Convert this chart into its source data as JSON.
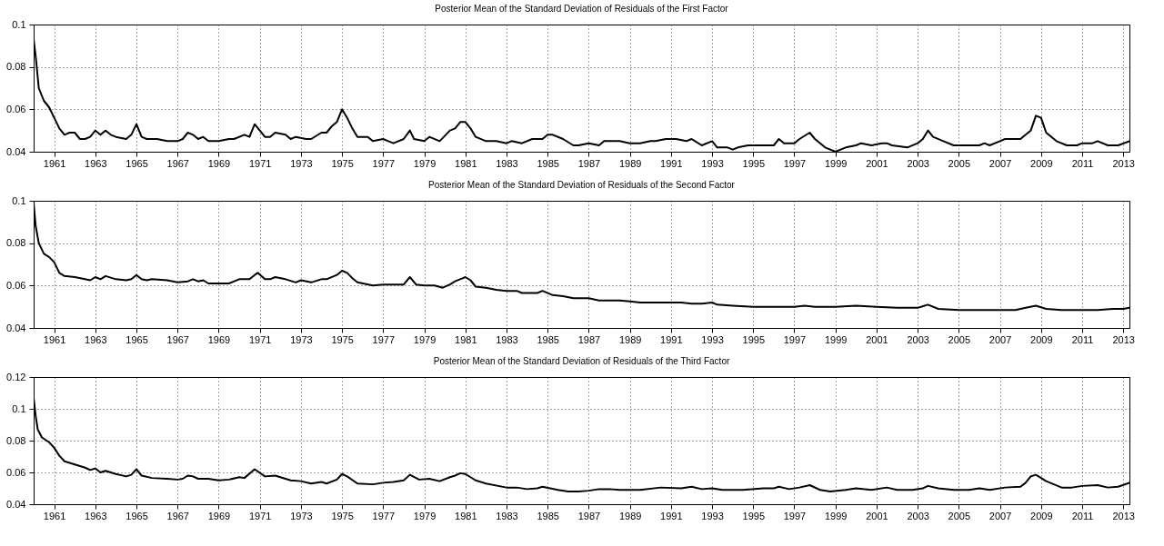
{
  "chart_data": [
    {
      "type": "line",
      "title": "Posterior Mean of the Standard Deviation of Residuals of the First Factor",
      "grid": true,
      "xlim": [
        1960,
        2013.3
      ],
      "xticks": [
        1961,
        1963,
        1965,
        1967,
        1969,
        1971,
        1973,
        1975,
        1977,
        1979,
        1981,
        1983,
        1985,
        1987,
        1989,
        1991,
        1993,
        1995,
        1997,
        1999,
        2001,
        2003,
        2005,
        2007,
        2009,
        2011,
        2013
      ],
      "ylim": [
        0.04,
        0.1
      ],
      "yticks": [
        0.04,
        0.06,
        0.08,
        0.1
      ],
      "x": [
        1960,
        1960.1,
        1960.25,
        1960.5,
        1960.75,
        1961,
        1961.25,
        1961.5,
        1961.75,
        1962,
        1962.25,
        1962.5,
        1962.75,
        1963,
        1963.25,
        1963.5,
        1963.75,
        1964,
        1964.5,
        1964.75,
        1965,
        1965.25,
        1965.5,
        1966,
        1966.5,
        1967,
        1967.25,
        1967.5,
        1967.75,
        1968,
        1968.25,
        1968.5,
        1969,
        1969.5,
        1969.75,
        1970.25,
        1970.5,
        1970.75,
        1971.25,
        1971.5,
        1971.75,
        1972.25,
        1972.5,
        1972.75,
        1973.25,
        1973.5,
        1974,
        1974.25,
        1974.5,
        1974.75,
        1975,
        1975.25,
        1975.5,
        1975.75,
        1976.25,
        1976.5,
        1977,
        1977.25,
        1977.5,
        1978,
        1978.3,
        1978.5,
        1979,
        1979.25,
        1979.75,
        1980.25,
        1980.5,
        1980.75,
        1981,
        1981.25,
        1981.5,
        1982,
        1982.5,
        1983,
        1983.25,
        1983.75,
        1984.25,
        1984.75,
        1985,
        1985.25,
        1985.75,
        1986.25,
        1986.5,
        1987,
        1987.5,
        1987.75,
        1988.25,
        1988.5,
        1989,
        1989.5,
        1990,
        1990.25,
        1990.75,
        1991.25,
        1991.75,
        1992,
        1992.5,
        1993,
        1993.25,
        1993.75,
        1994,
        1994.25,
        1994.75,
        1995.25,
        1995.75,
        1996,
        1996.25,
        1996.5,
        1997,
        1997.25,
        1997.75,
        1998,
        1998.5,
        1999,
        1999.5,
        2000,
        2000.25,
        2000.75,
        2001.25,
        2001.5,
        2001.75,
        2002.5,
        2003,
        2003.25,
        2003.5,
        2003.75,
        2004.25,
        2004.75,
        2005.5,
        2006,
        2006.25,
        2006.5,
        2007,
        2007.25,
        2007.75,
        2008,
        2008.25,
        2008.5,
        2008.75,
        2009,
        2009.25,
        2009.75,
        2010.25,
        2010.75,
        2011,
        2011.5,
        2011.75,
        2012.25,
        2012.75,
        2013.3
      ],
      "series": [
        {
          "color": "#000000",
          "values": [
            0.093,
            0.085,
            0.07,
            0.064,
            0.061,
            0.056,
            0.051,
            0.048,
            0.049,
            0.049,
            0.046,
            0.046,
            0.047,
            0.05,
            0.048,
            0.05,
            0.048,
            0.047,
            0.046,
            0.048,
            0.053,
            0.047,
            0.046,
            0.046,
            0.045,
            0.045,
            0.046,
            0.049,
            0.048,
            0.046,
            0.047,
            0.045,
            0.045,
            0.046,
            0.046,
            0.048,
            0.047,
            0.053,
            0.047,
            0.047,
            0.049,
            0.048,
            0.046,
            0.047,
            0.046,
            0.046,
            0.049,
            0.049,
            0.052,
            0.054,
            0.06,
            0.056,
            0.051,
            0.047,
            0.047,
            0.045,
            0.046,
            0.045,
            0.044,
            0.046,
            0.05,
            0.046,
            0.045,
            0.047,
            0.045,
            0.05,
            0.051,
            0.054,
            0.054,
            0.051,
            0.047,
            0.045,
            0.045,
            0.044,
            0.045,
            0.044,
            0.046,
            0.046,
            0.048,
            0.048,
            0.046,
            0.043,
            0.043,
            0.044,
            0.043,
            0.045,
            0.045,
            0.045,
            0.044,
            0.044,
            0.045,
            0.045,
            0.046,
            0.046,
            0.045,
            0.046,
            0.043,
            0.045,
            0.042,
            0.042,
            0.041,
            0.042,
            0.043,
            0.043,
            0.043,
            0.043,
            0.046,
            0.044,
            0.044,
            0.046,
            0.049,
            0.046,
            0.042,
            0.04,
            0.042,
            0.043,
            0.044,
            0.043,
            0.044,
            0.044,
            0.043,
            0.042,
            0.044,
            0.046,
            0.05,
            0.047,
            0.045,
            0.043,
            0.043,
            0.043,
            0.044,
            0.043,
            0.045,
            0.046,
            0.046,
            0.046,
            0.048,
            0.05,
            0.057,
            0.056,
            0.049,
            0.045,
            0.043,
            0.043,
            0.044,
            0.044,
            0.045,
            0.043,
            0.043,
            0.045
          ]
        }
      ]
    },
    {
      "type": "line",
      "title": "Posterior Mean of the Standard Deviation of Residuals of the Second Factor",
      "grid": true,
      "xlim": [
        1960,
        2013.3
      ],
      "xticks": [
        1961,
        1963,
        1965,
        1967,
        1969,
        1971,
        1973,
        1975,
        1977,
        1979,
        1981,
        1983,
        1985,
        1987,
        1989,
        1991,
        1993,
        1995,
        1997,
        1999,
        2001,
        2003,
        2005,
        2007,
        2009,
        2011,
        2013
      ],
      "ylim": [
        0.04,
        0.1
      ],
      "yticks": [
        0.04,
        0.06,
        0.08,
        0.1
      ],
      "x": [
        1960,
        1960.1,
        1960.25,
        1960.5,
        1960.75,
        1961,
        1961.25,
        1961.5,
        1962,
        1962.5,
        1962.75,
        1963,
        1963.25,
        1963.5,
        1964,
        1964.5,
        1964.75,
        1965,
        1965.25,
        1965.5,
        1965.75,
        1966.5,
        1967,
        1967.5,
        1967.75,
        1968,
        1968.25,
        1968.5,
        1969.5,
        1970,
        1970.5,
        1970.75,
        1970.9,
        1971.25,
        1971.5,
        1971.75,
        1972.25,
        1972.75,
        1973,
        1973.5,
        1974,
        1974.25,
        1974.75,
        1975,
        1975.25,
        1975.5,
        1975.75,
        1976.5,
        1977,
        1978,
        1978.3,
        1978.6,
        1979,
        1979.5,
        1979.9,
        1980.25,
        1980.5,
        1981,
        1981.25,
        1981.5,
        1982,
        1982.5,
        1983,
        1983.5,
        1983.75,
        1984.5,
        1984.75,
        1985.25,
        1985.75,
        1986.25,
        1986.75,
        1987,
        1987.5,
        1988,
        1988.5,
        1989,
        1989.5,
        1990.5,
        1991,
        1991.5,
        1992,
        1992.5,
        1993,
        1993.25,
        1994,
        1995,
        1996,
        1996.5,
        1997,
        1997.5,
        1998,
        1999,
        2000,
        2001,
        2002,
        2003,
        2003.5,
        2004,
        2005,
        2006,
        2007,
        2007.75,
        2008.25,
        2008.75,
        2009.25,
        2010,
        2011,
        2011.75,
        2012.5,
        2013,
        2013.3
      ],
      "series": [
        {
          "color": "#000000",
          "values": [
            0.099,
            0.088,
            0.08,
            0.075,
            0.0735,
            0.071,
            0.066,
            0.0645,
            0.064,
            0.063,
            0.0625,
            0.064,
            0.063,
            0.0645,
            0.063,
            0.0625,
            0.063,
            0.065,
            0.063,
            0.0625,
            0.063,
            0.0625,
            0.0615,
            0.062,
            0.063,
            0.062,
            0.0625,
            0.061,
            0.061,
            0.063,
            0.063,
            0.065,
            0.066,
            0.063,
            0.063,
            0.064,
            0.063,
            0.0615,
            0.0625,
            0.0615,
            0.063,
            0.063,
            0.065,
            0.067,
            0.066,
            0.0635,
            0.0615,
            0.06,
            0.0605,
            0.0605,
            0.064,
            0.0605,
            0.06,
            0.06,
            0.059,
            0.0605,
            0.062,
            0.064,
            0.0625,
            0.0595,
            0.059,
            0.058,
            0.0575,
            0.0575,
            0.0565,
            0.0565,
            0.0575,
            0.0555,
            0.055,
            0.054,
            0.054,
            0.054,
            0.053,
            0.053,
            0.053,
            0.0525,
            0.052,
            0.052,
            0.052,
            0.052,
            0.0515,
            0.0515,
            0.052,
            0.051,
            0.0505,
            0.05,
            0.05,
            0.05,
            0.05,
            0.0505,
            0.05,
            0.05,
            0.0505,
            0.05,
            0.0495,
            0.0495,
            0.051,
            0.049,
            0.0485,
            0.0485,
            0.0485,
            0.0485,
            0.0495,
            0.0505,
            0.049,
            0.0485,
            0.0485,
            0.0485,
            0.049,
            0.049,
            0.0495
          ]
        }
      ]
    },
    {
      "type": "line",
      "title": "Posterior Mean of the Standard Deviation of Residuals of the Third Factor",
      "grid": true,
      "xlim": [
        1960,
        2013.3
      ],
      "xticks": [
        1961,
        1963,
        1965,
        1967,
        1969,
        1971,
        1973,
        1975,
        1977,
        1979,
        1981,
        1983,
        1985,
        1987,
        1989,
        1991,
        1993,
        1995,
        1997,
        1999,
        2001,
        2003,
        2005,
        2007,
        2009,
        2011,
        2013
      ],
      "ylim": [
        0.04,
        0.12
      ],
      "yticks": [
        0.04,
        0.06,
        0.08,
        0.1,
        0.12
      ],
      "x": [
        1960,
        1960.1,
        1960.2,
        1960.4,
        1960.75,
        1961,
        1961.25,
        1961.5,
        1962,
        1962.5,
        1962.75,
        1963,
        1963.25,
        1963.5,
        1964,
        1964.5,
        1964.75,
        1965,
        1965.25,
        1965.75,
        1966.5,
        1967,
        1967.25,
        1967.5,
        1967.75,
        1968,
        1968.5,
        1969,
        1969.5,
        1970,
        1970.25,
        1970.75,
        1971.25,
        1971.75,
        1972.25,
        1972.5,
        1973,
        1973.5,
        1974,
        1974.25,
        1974.75,
        1975,
        1975.25,
        1975.75,
        1976.5,
        1977,
        1977.5,
        1978,
        1978.3,
        1978.75,
        1979.25,
        1979.75,
        1980.25,
        1980.5,
        1980.75,
        1981,
        1981.5,
        1982,
        1983,
        1983.5,
        1984,
        1984.5,
        1984.75,
        1985.5,
        1986,
        1986.5,
        1987,
        1987.5,
        1988,
        1988.5,
        1989.5,
        1990.5,
        1991.5,
        1992,
        1992.5,
        1993,
        1993.5,
        1994.5,
        1995.5,
        1996,
        1996.25,
        1996.75,
        1997.25,
        1997.75,
        1998.25,
        1998.75,
        1999.5,
        2000,
        2000.75,
        2001.5,
        2002,
        2002.75,
        2003.25,
        2003.5,
        2004,
        2004.75,
        2005.5,
        2006,
        2006.5,
        2007.25,
        2008,
        2008.25,
        2008.5,
        2008.75,
        2009.25,
        2010,
        2010.5,
        2011,
        2011.75,
        2012.25,
        2012.75,
        2013.3
      ],
      "series": [
        {
          "color": "#000000",
          "values": [
            0.107,
            0.0955,
            0.087,
            0.082,
            0.079,
            0.0755,
            0.0705,
            0.067,
            0.065,
            0.063,
            0.0615,
            0.0625,
            0.06,
            0.061,
            0.059,
            0.0575,
            0.0585,
            0.062,
            0.058,
            0.0565,
            0.056,
            0.0555,
            0.056,
            0.058,
            0.0575,
            0.056,
            0.056,
            0.055,
            0.0555,
            0.057,
            0.0565,
            0.062,
            0.0575,
            0.058,
            0.056,
            0.055,
            0.0545,
            0.053,
            0.054,
            0.053,
            0.0555,
            0.059,
            0.0575,
            0.053,
            0.0525,
            0.0535,
            0.054,
            0.055,
            0.0585,
            0.0555,
            0.056,
            0.0545,
            0.057,
            0.058,
            0.0595,
            0.059,
            0.055,
            0.053,
            0.0505,
            0.0505,
            0.0495,
            0.05,
            0.051,
            0.049,
            0.048,
            0.048,
            0.0485,
            0.0495,
            0.0495,
            0.049,
            0.049,
            0.0505,
            0.05,
            0.051,
            0.0495,
            0.05,
            0.049,
            0.049,
            0.05,
            0.05,
            0.051,
            0.0495,
            0.0505,
            0.052,
            0.049,
            0.048,
            0.049,
            0.05,
            0.049,
            0.0505,
            0.049,
            0.049,
            0.05,
            0.0515,
            0.05,
            0.049,
            0.049,
            0.05,
            0.049,
            0.0505,
            0.051,
            0.0535,
            0.0575,
            0.0585,
            0.0545,
            0.0505,
            0.0505,
            0.0515,
            0.052,
            0.0505,
            0.051,
            0.0535
          ]
        }
      ]
    }
  ]
}
